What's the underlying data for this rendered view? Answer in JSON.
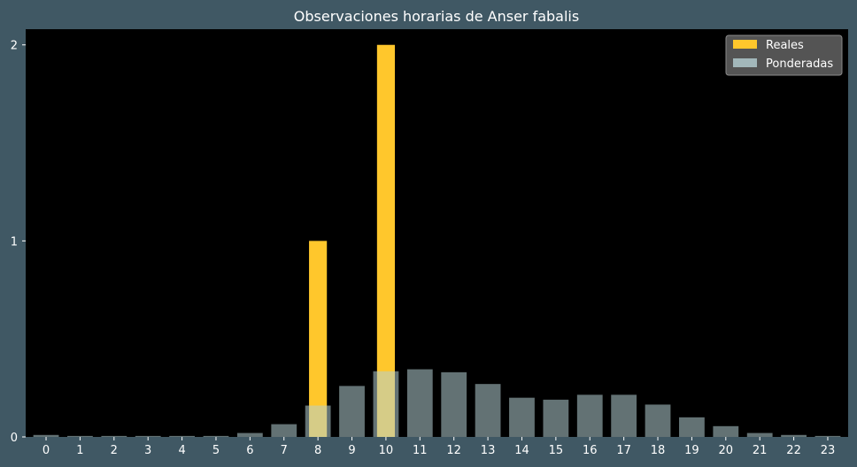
{
  "chart_data": {
    "type": "bar",
    "title": "Observaciones horarias de Anser fabalis",
    "xlabel": "",
    "ylabel": "",
    "categories": [
      "0",
      "1",
      "2",
      "3",
      "4",
      "5",
      "6",
      "7",
      "8",
      "9",
      "10",
      "11",
      "12",
      "13",
      "14",
      "15",
      "16",
      "17",
      "18",
      "19",
      "20",
      "21",
      "22",
      "23"
    ],
    "ylim": [
      0,
      2.08
    ],
    "yticks": [
      "0",
      "1",
      "2"
    ],
    "grid": false,
    "legend_position": "top-right",
    "series": [
      {
        "name": "Reales",
        "color": "#ffc72c",
        "values": [
          0,
          0,
          0,
          0,
          0,
          0,
          0,
          0,
          1,
          0,
          2,
          0,
          0,
          0,
          0,
          0,
          0,
          0,
          0,
          0,
          0,
          0,
          0,
          0
        ]
      },
      {
        "name": "Ponderadas",
        "color": "#b5cfd3",
        "opacity": 0.55,
        "values": [
          0.01,
          0.005,
          0.005,
          0.005,
          0.005,
          0.005,
          0.02,
          0.065,
          0.16,
          0.26,
          0.335,
          0.345,
          0.33,
          0.27,
          0.2,
          0.19,
          0.215,
          0.215,
          0.165,
          0.1,
          0.055,
          0.02,
          0.01,
          0.005
        ]
      }
    ],
    "colors": {
      "background": "#405864",
      "plot_background": "#000000",
      "text": "#ffffff",
      "legend_background": "#595959"
    }
  }
}
